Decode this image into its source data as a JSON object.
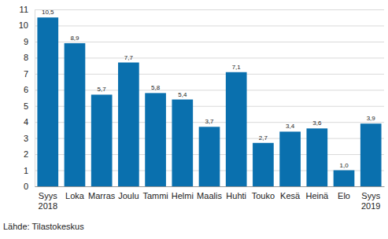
{
  "chart_data": {
    "type": "bar",
    "categories": [
      "Syys 2018",
      "Loka",
      "Marras",
      "Joulu",
      "Tammi",
      "Helmi",
      "Maalis",
      "Huhti",
      "Touko",
      "Kesä",
      "Heinä",
      "Elo",
      "Syys 2019"
    ],
    "values": [
      10.5,
      8.9,
      5.7,
      7.7,
      5.8,
      5.4,
      3.7,
      7.1,
      2.7,
      3.4,
      3.6,
      1.0,
      3.9
    ],
    "value_labels": [
      "10,5",
      "8,9",
      "5,7",
      "7,7",
      "5,8",
      "5,4",
      "3,7",
      "7,1",
      "2,7",
      "3,4",
      "3,6",
      "1,0",
      "3,9"
    ],
    "data_labels": true,
    "color": "#0a70ae",
    "ylim": [
      0,
      11
    ],
    "yticks": [
      0,
      1,
      2,
      3,
      4,
      5,
      6,
      7,
      8,
      9,
      10,
      11
    ],
    "grid": true,
    "annotations": [
      "Lähde: Tilastokeskus"
    ]
  }
}
